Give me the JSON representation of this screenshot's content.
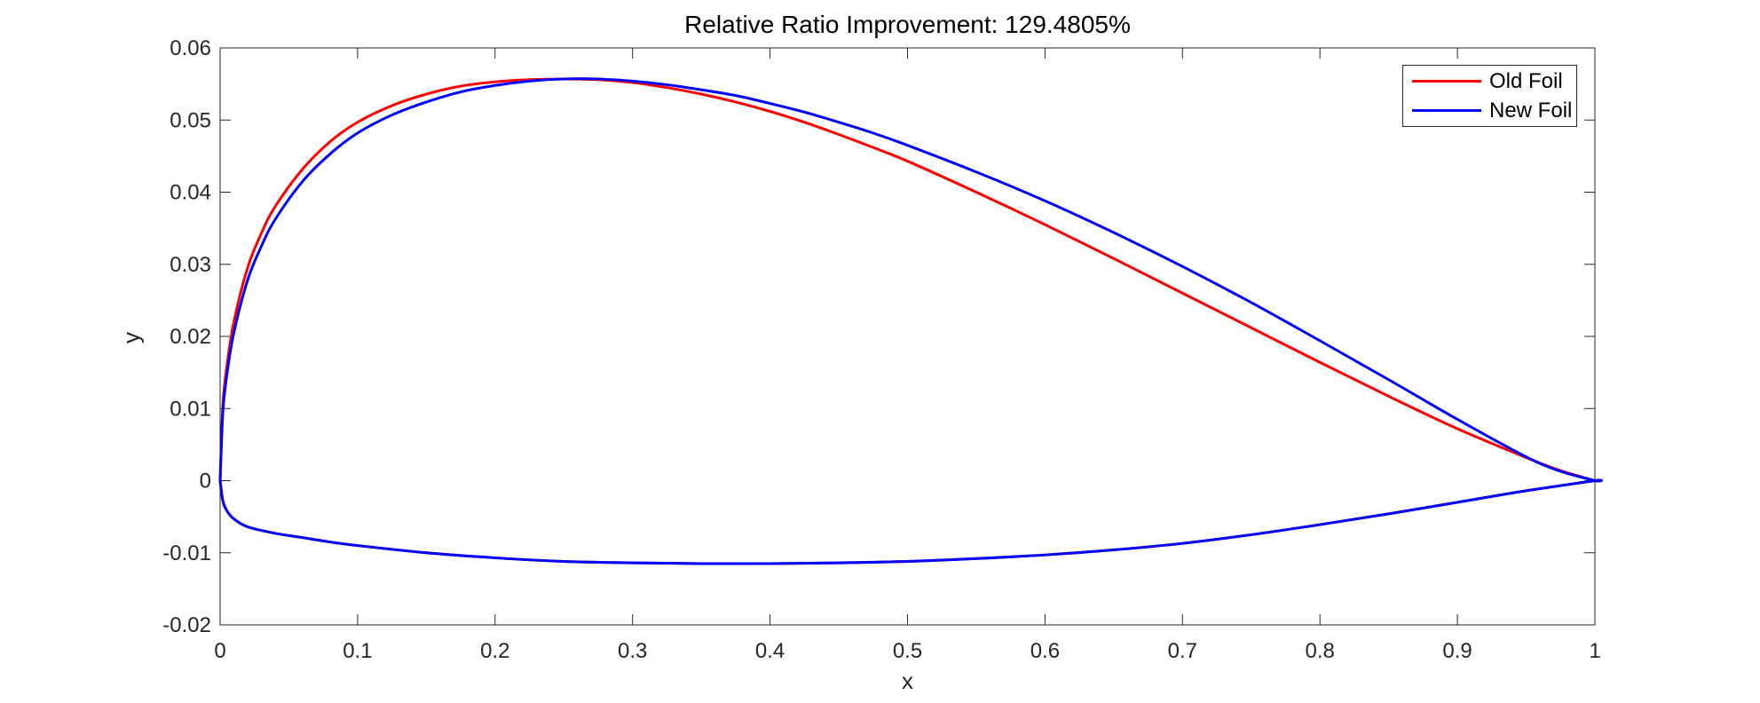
{
  "title": "Relative Ratio Improvement: 129.4805%",
  "colors": {
    "old_foil": "#ff0000",
    "new_foil": "#0000ff",
    "axis": "#262626",
    "tick_text": "#262626",
    "title_text": "#000000",
    "background": "#ffffff"
  },
  "legend": {
    "items": [
      {
        "label": "Old Foil",
        "color": "#ff0000"
      },
      {
        "label": "New Foil",
        "color": "#0000ff"
      }
    ]
  },
  "chart_data": {
    "type": "line",
    "title": "Relative Ratio Improvement: 129.4805%",
    "xlabel": "x",
    "ylabel": "y",
    "xlim": [
      0,
      1
    ],
    "ylim": [
      -0.02,
      0.06
    ],
    "x_ticks": [
      0,
      0.1,
      0.2,
      0.3,
      0.4,
      0.5,
      0.6,
      0.7,
      0.8,
      0.9,
      1
    ],
    "x_tick_labels": [
      "0",
      "0.1",
      "0.2",
      "0.3",
      "0.4",
      "0.5",
      "0.6",
      "0.7",
      "0.8",
      "0.9",
      "1"
    ],
    "y_ticks": [
      -0.02,
      -0.01,
      0,
      0.01,
      0.02,
      0.03,
      0.04,
      0.05,
      0.06
    ],
    "y_tick_labels": [
      "-0.02",
      "-0.01",
      "0",
      "0.01",
      "0.02",
      "0.03",
      "0.04",
      "0.05",
      "0.06"
    ],
    "grid": false,
    "box": true,
    "tick_direction": "in",
    "legend_position": "top-right",
    "series": [
      {
        "name": "Old Foil",
        "color": "#ff0000",
        "upper_surface": [
          [
            0,
            0
          ],
          [
            0.002,
            0.0105
          ],
          [
            0.005,
            0.016
          ],
          [
            0.01,
            0.022
          ],
          [
            0.02,
            0.0295
          ],
          [
            0.03,
            0.0343
          ],
          [
            0.04,
            0.038
          ],
          [
            0.06,
            0.0432
          ],
          [
            0.08,
            0.047
          ],
          [
            0.1,
            0.0497
          ],
          [
            0.125,
            0.052
          ],
          [
            0.15,
            0.0536
          ],
          [
            0.175,
            0.0547
          ],
          [
            0.2,
            0.0553
          ],
          [
            0.225,
            0.0556
          ],
          [
            0.25,
            0.0557
          ],
          [
            0.275,
            0.0556
          ],
          [
            0.3,
            0.0552
          ],
          [
            0.325,
            0.0545
          ],
          [
            0.35,
            0.0536
          ],
          [
            0.375,
            0.0525
          ],
          [
            0.4,
            0.0512
          ],
          [
            0.425,
            0.0497
          ],
          [
            0.45,
            0.048
          ],
          [
            0.475,
            0.0462
          ],
          [
            0.5,
            0.0443
          ],
          [
            0.55,
            0.04
          ],
          [
            0.6,
            0.0355
          ],
          [
            0.65,
            0.0308
          ],
          [
            0.7,
            0.026
          ],
          [
            0.75,
            0.0212
          ],
          [
            0.8,
            0.0164
          ],
          [
            0.85,
            0.0117
          ],
          [
            0.9,
            0.0072
          ],
          [
            0.95,
            0.0032
          ],
          [
            0.975,
            0.0014
          ],
          [
            1,
            0
          ]
        ],
        "lower_surface": [
          [
            0,
            0
          ],
          [
            0.002,
            -0.0028
          ],
          [
            0.005,
            -0.0042
          ],
          [
            0.01,
            -0.0053
          ],
          [
            0.02,
            -0.0064
          ],
          [
            0.04,
            -0.0073
          ],
          [
            0.06,
            -0.0079
          ],
          [
            0.08,
            -0.0085
          ],
          [
            0.1,
            -0.009
          ],
          [
            0.15,
            -0.01
          ],
          [
            0.2,
            -0.0107
          ],
          [
            0.25,
            -0.0112
          ],
          [
            0.3,
            -0.0114
          ],
          [
            0.35,
            -0.0115
          ],
          [
            0.4,
            -0.0115
          ],
          [
            0.45,
            -0.0114
          ],
          [
            0.5,
            -0.0112
          ],
          [
            0.55,
            -0.0108
          ],
          [
            0.6,
            -0.0103
          ],
          [
            0.65,
            -0.0096
          ],
          [
            0.7,
            -0.0087
          ],
          [
            0.75,
            -0.0075
          ],
          [
            0.8,
            -0.0061
          ],
          [
            0.85,
            -0.0046
          ],
          [
            0.9,
            -0.003
          ],
          [
            0.95,
            -0.0014
          ],
          [
            1,
            0
          ]
        ]
      },
      {
        "name": "New Foil",
        "color": "#0000ff",
        "upper_surface": [
          [
            0,
            0
          ],
          [
            0.002,
            0.0095
          ],
          [
            0.005,
            0.0148
          ],
          [
            0.01,
            0.0205
          ],
          [
            0.02,
            0.0278
          ],
          [
            0.03,
            0.0325
          ],
          [
            0.04,
            0.0362
          ],
          [
            0.06,
            0.0415
          ],
          [
            0.08,
            0.0453
          ],
          [
            0.1,
            0.0482
          ],
          [
            0.125,
            0.0507
          ],
          [
            0.15,
            0.0525
          ],
          [
            0.175,
            0.0539
          ],
          [
            0.2,
            0.0548
          ],
          [
            0.225,
            0.0554
          ],
          [
            0.25,
            0.0557
          ],
          [
            0.275,
            0.0557
          ],
          [
            0.3,
            0.0554
          ],
          [
            0.325,
            0.0549
          ],
          [
            0.35,
            0.0542
          ],
          [
            0.375,
            0.0534
          ],
          [
            0.4,
            0.0523
          ],
          [
            0.425,
            0.0511
          ],
          [
            0.45,
            0.0497
          ],
          [
            0.475,
            0.0482
          ],
          [
            0.5,
            0.0465
          ],
          [
            0.55,
            0.0428
          ],
          [
            0.6,
            0.0388
          ],
          [
            0.65,
            0.0344
          ],
          [
            0.7,
            0.0297
          ],
          [
            0.75,
            0.0247
          ],
          [
            0.8,
            0.0194
          ],
          [
            0.85,
            0.014
          ],
          [
            0.9,
            0.0085
          ],
          [
            0.95,
            0.0033
          ],
          [
            0.975,
            0.0013
          ],
          [
            1,
            0
          ]
        ],
        "lower_surface": [
          [
            0,
            0
          ],
          [
            0.002,
            -0.0028
          ],
          [
            0.005,
            -0.0042
          ],
          [
            0.01,
            -0.0053
          ],
          [
            0.02,
            -0.0064
          ],
          [
            0.04,
            -0.0073
          ],
          [
            0.06,
            -0.0079
          ],
          [
            0.08,
            -0.0085
          ],
          [
            0.1,
            -0.009
          ],
          [
            0.15,
            -0.01
          ],
          [
            0.2,
            -0.0107
          ],
          [
            0.25,
            -0.0112
          ],
          [
            0.3,
            -0.0114
          ],
          [
            0.35,
            -0.0115
          ],
          [
            0.4,
            -0.0115
          ],
          [
            0.45,
            -0.0114
          ],
          [
            0.5,
            -0.0112
          ],
          [
            0.55,
            -0.0108
          ],
          [
            0.6,
            -0.0103
          ],
          [
            0.65,
            -0.0096
          ],
          [
            0.7,
            -0.0087
          ],
          [
            0.75,
            -0.0075
          ],
          [
            0.8,
            -0.0061
          ],
          [
            0.85,
            -0.0046
          ],
          [
            0.9,
            -0.003
          ],
          [
            0.95,
            -0.0014
          ],
          [
            1,
            0
          ]
        ]
      }
    ]
  }
}
